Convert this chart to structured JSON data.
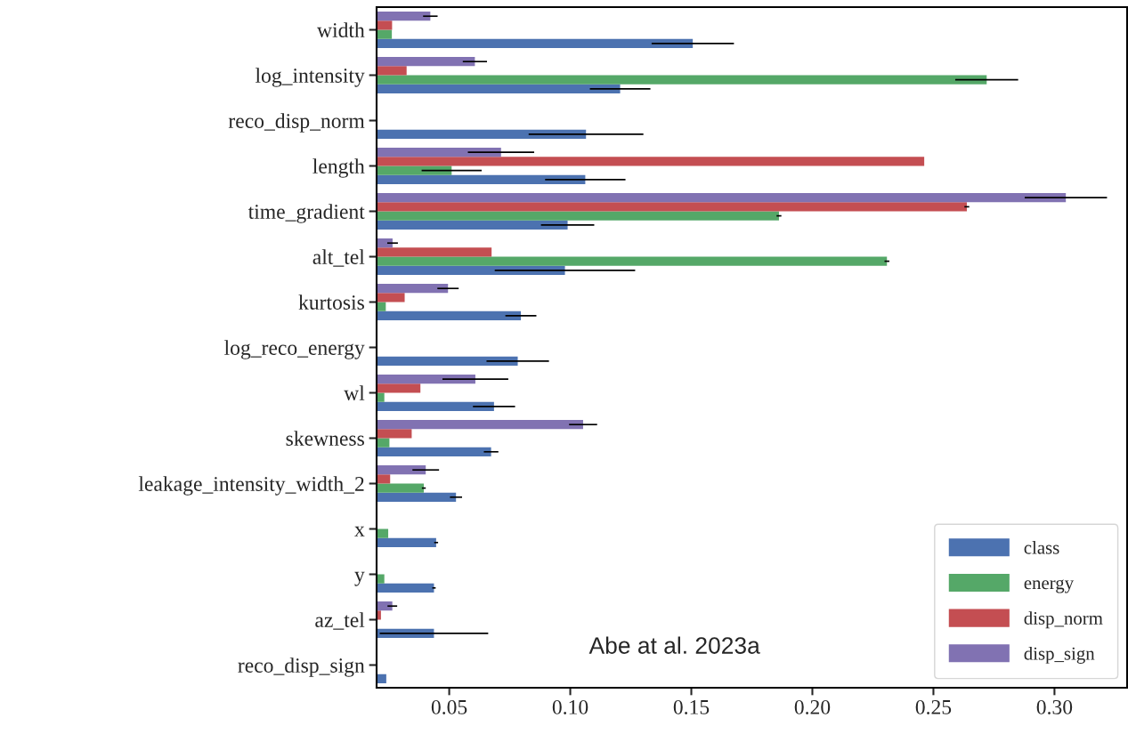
{
  "chart_data": {
    "type": "bar",
    "orientation": "horizontal",
    "categories": [
      "width",
      "log_intensity",
      "reco_disp_norm",
      "length",
      "time_gradient",
      "alt_tel",
      "kurtosis",
      "log_reco_energy",
      "wl",
      "skewness",
      "leakage_intensity_width_2",
      "x",
      "y",
      "az_tel",
      "reco_disp_sign"
    ],
    "series": [
      {
        "name": "class",
        "color": "#4c72b0",
        "values": [
          0.1506,
          0.1206,
          0.1065,
          0.1062,
          0.0989,
          0.0978,
          0.0796,
          0.0783,
          0.0685,
          0.0673,
          0.0528,
          0.0446,
          0.0437,
          0.0437,
          0.024
        ],
        "errors": [
          0.017,
          0.0125,
          0.0237,
          0.0166,
          0.011,
          0.029,
          0.0064,
          0.0129,
          0.0087,
          0.003,
          0.0025,
          0.0008,
          0.0007,
          0.0224,
          null
        ]
      },
      {
        "name": "energy",
        "color": "#55a868",
        "values": [
          0.0263,
          0.272,
          null,
          0.051,
          0.1862,
          0.2308,
          0.0238,
          null,
          0.0232,
          0.0253,
          0.0395,
          0.0248,
          0.0232,
          null,
          null
        ],
        "errors": [
          null,
          0.013,
          null,
          0.0124,
          0.001,
          0.001,
          null,
          null,
          null,
          null,
          0.0008,
          null,
          null,
          null,
          null
        ]
      },
      {
        "name": "disp_norm",
        "color": "#c44e52",
        "values": [
          0.0264,
          0.0324,
          null,
          0.2462,
          0.2638,
          0.0675,
          0.0316,
          null,
          0.0381,
          0.0345,
          0.0256,
          null,
          null,
          0.0218,
          null
        ],
        "errors": [
          null,
          null,
          null,
          null,
          0.001,
          null,
          null,
          null,
          null,
          null,
          null,
          null,
          null,
          null,
          null
        ]
      },
      {
        "name": "disp_sign",
        "color": "#8172b2",
        "values": [
          0.0422,
          0.0606,
          null,
          0.0714,
          0.3047,
          0.0266,
          0.0495,
          null,
          0.0608,
          0.1053,
          0.0403,
          null,
          null,
          0.0265,
          null
        ],
        "errors": [
          0.003,
          0.005,
          null,
          0.0137,
          0.017,
          0.0022,
          0.0044,
          null,
          0.0136,
          0.0058,
          0.0055,
          null,
          null,
          0.002,
          null
        ]
      }
    ],
    "xlim": [
      0.02,
      0.33
    ],
    "xticks": [
      0.05,
      {
        "value": 0.1,
        "label": "0.10"
      },
      0.15,
      {
        "value": 0.2,
        "label": "0.20"
      },
      0.25,
      {
        "value": 0.3,
        "label": "0.30"
      }
    ],
    "grid": false,
    "legend": "bottom right",
    "annotations": [
      "Abe at al. 2023a"
    ]
  }
}
